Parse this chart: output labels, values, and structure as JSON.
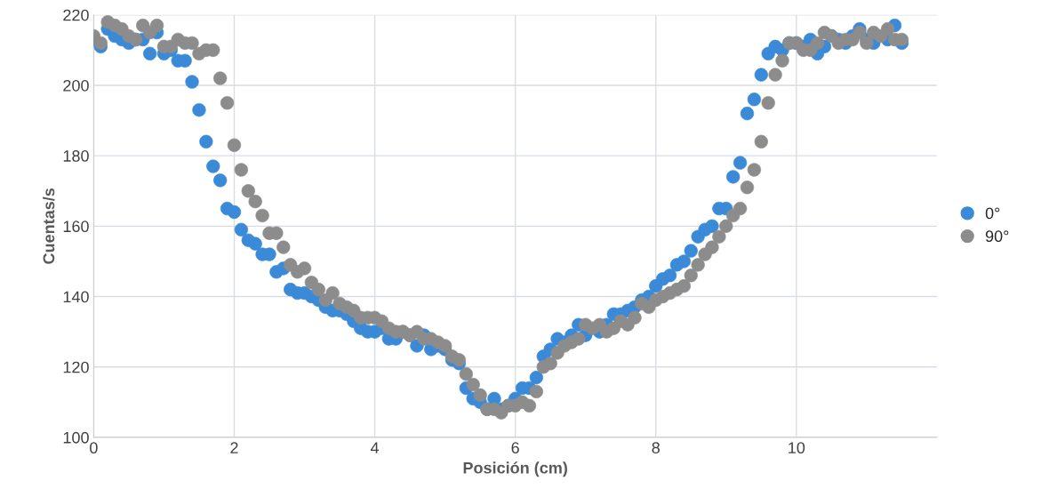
{
  "chart_data": {
    "type": "scatter",
    "xlabel": "Posición (cm)",
    "ylabel": "Cuentas/s",
    "x": [
      0,
      0.1,
      0.2,
      0.3,
      0.4,
      0.5,
      0.6,
      0.7,
      0.8,
      0.9,
      1,
      1.1,
      1.2,
      1.3,
      1.4,
      1.5,
      1.6,
      1.7,
      1.8,
      1.9,
      2,
      2.1,
      2.2,
      2.3,
      2.4,
      2.5,
      2.6,
      2.7,
      2.8,
      2.9,
      3,
      3.1,
      3.2,
      3.3,
      3.4,
      3.5,
      3.6,
      3.7,
      3.8,
      3.9,
      4,
      4.1,
      4.2,
      4.3,
      4.4,
      4.5,
      4.6,
      4.7,
      4.8,
      4.9,
      5,
      5.1,
      5.2,
      5.3,
      5.4,
      5.5,
      5.6,
      5.7,
      5.8,
      5.9,
      6,
      6.1,
      6.2,
      6.3,
      6.4,
      6.5,
      6.6,
      6.7,
      6.8,
      6.9,
      7,
      7.1,
      7.2,
      7.3,
      7.4,
      7.5,
      7.6,
      7.7,
      7.8,
      7.9,
      8,
      8.1,
      8.2,
      8.3,
      8.4,
      8.5,
      8.6,
      8.7,
      8.8,
      8.9,
      9,
      9.1,
      9.2,
      9.3,
      9.4,
      9.5,
      9.6,
      9.7,
      9.8,
      9.9,
      10,
      10.1,
      10.2,
      10.3,
      10.4,
      10.5,
      10.6,
      10.7,
      10.8,
      10.9,
      11,
      11.1,
      11.2,
      11.3,
      11.4,
      11.5
    ],
    "series": [
      {
        "name": "0°",
        "color": "#3b8ad8",
        "values": [
          213,
          211,
          216,
          214,
          213,
          212,
          213,
          213,
          209,
          215,
          209,
          210,
          207,
          207,
          201,
          193,
          184,
          177,
          173,
          165,
          164,
          159,
          156,
          155,
          152,
          152,
          147,
          148,
          142,
          141,
          141,
          140,
          139,
          137,
          136,
          136,
          135,
          133,
          131,
          130,
          130,
          131,
          128,
          128,
          130,
          129,
          126,
          129,
          125,
          126,
          125,
          122,
          121,
          114,
          111,
          110,
          108,
          111,
          108,
          109,
          111,
          114,
          114,
          117,
          123,
          125,
          128,
          127,
          129,
          132,
          129,
          null,
          130,
          132,
          135,
          135,
          136,
          137,
          139,
          140,
          143,
          145,
          146,
          149,
          150,
          153,
          157,
          159,
          160,
          165,
          165,
          174,
          178,
          192,
          196,
          203,
          209,
          211,
          210,
          212,
          212,
          211,
          213,
          209,
          211,
          214,
          213,
          212,
          214,
          216,
          213,
          212,
          null,
          213,
          217,
          212
        ]
      },
      {
        "name": "90°",
        "color": "#8c8c8c",
        "values": [
          214,
          212,
          218,
          217,
          216,
          214,
          213,
          217,
          215,
          217,
          211,
          211,
          213,
          212,
          212,
          209,
          210,
          210,
          202,
          195,
          183,
          176,
          170,
          167,
          163,
          158,
          158,
          154,
          149,
          147,
          148,
          144,
          142,
          139,
          141,
          138,
          137,
          136,
          134,
          134,
          134,
          133,
          131,
          130,
          130,
          129,
          130,
          128,
          128,
          127,
          126,
          123,
          122,
          118,
          115,
          112,
          108,
          108,
          107,
          109,
          109,
          110,
          109,
          113,
          120,
          121,
          124,
          126,
          127,
          128,
          132,
          131,
          132,
          130,
          131,
          133,
          132,
          134,
          138,
          137,
          139,
          140,
          141,
          142,
          143,
          146,
          149,
          152,
          154,
          157,
          160,
          163,
          165,
          171,
          176,
          184,
          195,
          203,
          207,
          212,
          212,
          210,
          210,
          212,
          215,
          214,
          212,
          213,
          213,
          215,
          212,
          215,
          214,
          216,
          213,
          213
        ]
      }
    ],
    "xlim": [
      0,
      12
    ],
    "xticks": [
      0,
      2,
      4,
      6,
      8,
      10
    ],
    "ylim": [
      100,
      220
    ],
    "yticks": [
      100,
      120,
      140,
      160,
      180,
      200,
      220
    ],
    "grid": true,
    "legend": "right",
    "marker": "circle"
  }
}
